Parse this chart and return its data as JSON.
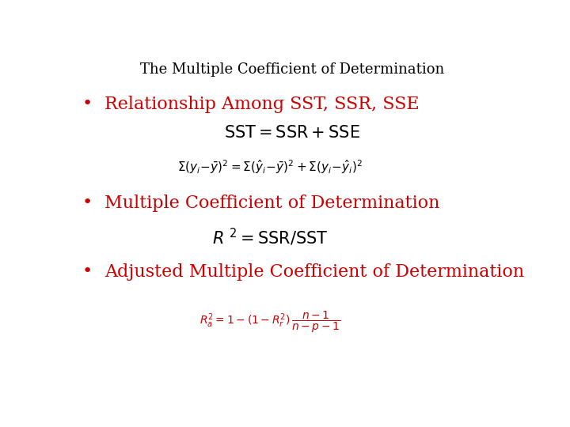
{
  "title": "The Multiple Coefficient of Determination",
  "title_color": "#000000",
  "title_fontsize": 13,
  "bg_color": "#ffffff",
  "bullet_color": "#cc0000",
  "black_color": "#000000",
  "red_color": "#cc0000",
  "bullet1_text": "Relationship Among SST, SSR, SSE",
  "bullet2_text": "Multiple Coefficient of Determination",
  "bullet3_text": "Adjusted Multiple Coefficient of Determination",
  "sub1_text": "SST = SSR + SSE",
  "bullet_fontsize": 16,
  "sub_fontsize": 15,
  "formula_fontsize": 11,
  "formula3_fontsize": 10
}
